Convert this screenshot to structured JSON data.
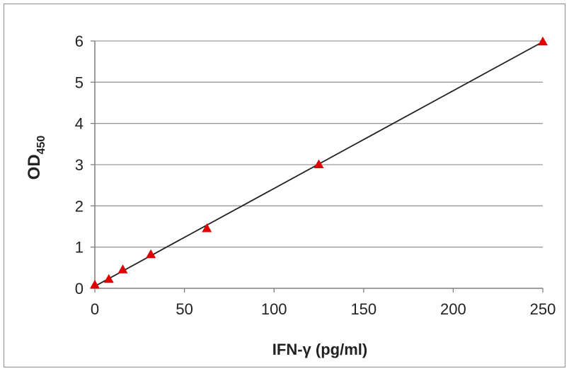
{
  "chart_data": {
    "type": "scatter",
    "xlabel": "IFN-γ (pg/ml)",
    "ylabel_main": "OD",
    "ylabel_sub": "450",
    "xlim": [
      0,
      250
    ],
    "ylim": [
      0,
      6
    ],
    "x_ticks": [
      "0",
      "50",
      "100",
      "150",
      "200",
      "250"
    ],
    "y_ticks": [
      "0",
      "1",
      "2",
      "3",
      "4",
      "5",
      "6"
    ],
    "grid": "horizontal",
    "series": [
      {
        "marker": "triangle",
        "color": "#e00000",
        "x": [
          0,
          7.8,
          15.6,
          31.25,
          62.5,
          125,
          250
        ],
        "y": [
          0.08,
          0.22,
          0.45,
          0.82,
          1.45,
          3.0,
          5.98
        ]
      }
    ],
    "trendline": {
      "color": "#222222",
      "x": [
        0,
        250
      ],
      "y": [
        0.05,
        5.98
      ]
    }
  }
}
